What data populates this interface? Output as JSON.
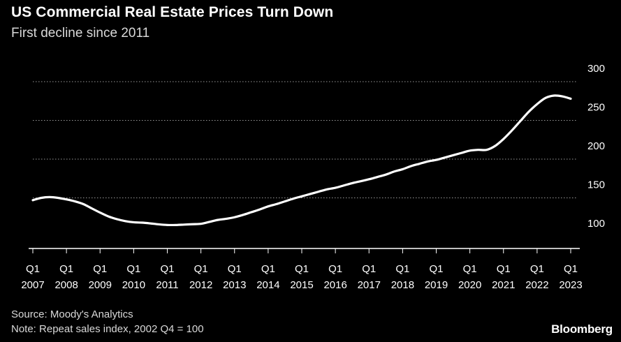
{
  "header": {
    "title": "US Commercial Real Estate Prices Turn Down",
    "subtitle": "First decline since 2011"
  },
  "footer": {
    "source": "Source: Moody's Analytics",
    "note": "Note: Repeat sales index, 2002 Q4 = 100",
    "brand": "Bloomberg"
  },
  "colors": {
    "background": "#000000",
    "line": "#ffffff",
    "grid": "#9a9a9a",
    "text": "#ffffff"
  },
  "chart_data": {
    "type": "line",
    "title": "US Commercial Real Estate Prices Turn Down",
    "subtitle": "First decline since 2011",
    "xlabel": "",
    "ylabel": "",
    "xlim": [
      2007.0,
      2023.25
    ],
    "ylim": [
      90,
      300
    ],
    "yticks": [
      100,
      150,
      200,
      250,
      300
    ],
    "xticks": [
      {
        "x": 2007,
        "q": "Q1",
        "year": "2007"
      },
      {
        "x": 2008,
        "q": "Q1",
        "year": "2008"
      },
      {
        "x": 2009,
        "q": "Q1",
        "year": "2009"
      },
      {
        "x": 2010,
        "q": "Q1",
        "year": "2010"
      },
      {
        "x": 2011,
        "q": "Q1",
        "year": "2011"
      },
      {
        "x": 2012,
        "q": "Q1",
        "year": "2012"
      },
      {
        "x": 2013,
        "q": "Q1",
        "year": "2013"
      },
      {
        "x": 2014,
        "q": "Q1",
        "year": "2014"
      },
      {
        "x": 2015,
        "q": "Q1",
        "year": "2015"
      },
      {
        "x": 2016,
        "q": "Q1",
        "year": "2016"
      },
      {
        "x": 2017,
        "q": "Q1",
        "year": "2017"
      },
      {
        "x": 2018,
        "q": "Q1",
        "year": "2018"
      },
      {
        "x": 2019,
        "q": "Q1",
        "year": "2019"
      },
      {
        "x": 2020,
        "q": "Q1",
        "year": "2020"
      },
      {
        "x": 2021,
        "q": "Q1",
        "year": "2021"
      },
      {
        "x": 2022,
        "q": "Q1",
        "year": "2022"
      },
      {
        "x": 2023,
        "q": "Q1",
        "year": "2023"
      }
    ],
    "grid": true,
    "axis_side": "right",
    "series": [
      {
        "name": "",
        "x": [
          2007.0,
          2007.25,
          2007.5,
          2007.75,
          2008.0,
          2008.25,
          2008.5,
          2008.75,
          2009.0,
          2009.25,
          2009.5,
          2009.75,
          2010.0,
          2010.25,
          2010.5,
          2010.75,
          2011.0,
          2011.25,
          2011.5,
          2011.75,
          2012.0,
          2012.25,
          2012.5,
          2012.75,
          2013.0,
          2013.25,
          2013.5,
          2013.75,
          2014.0,
          2014.25,
          2014.5,
          2014.75,
          2015.0,
          2015.25,
          2015.5,
          2015.75,
          2016.0,
          2016.25,
          2016.5,
          2016.75,
          2017.0,
          2017.25,
          2017.5,
          2017.75,
          2018.0,
          2018.25,
          2018.5,
          2018.75,
          2019.0,
          2019.25,
          2019.5,
          2019.75,
          2020.0,
          2020.25,
          2020.5,
          2020.75,
          2021.0,
          2021.25,
          2021.5,
          2021.75,
          2022.0,
          2022.25,
          2022.5,
          2022.75,
          2023.0
        ],
        "values": [
          147.0,
          150.0,
          151.0,
          150.0,
          148.0,
          145.5,
          142.0,
          136.5,
          131.0,
          126.0,
          122.5,
          120.0,
          118.5,
          118.0,
          117.0,
          115.8,
          115.0,
          115.0,
          115.5,
          116.0,
          116.5,
          119.0,
          121.5,
          123.0,
          125.0,
          128.0,
          131.5,
          135.0,
          139.0,
          142.0,
          145.5,
          149.0,
          152.0,
          155.0,
          158.0,
          161.0,
          163.0,
          166.0,
          169.0,
          171.5,
          174.0,
          177.0,
          180.0,
          184.0,
          187.0,
          191.0,
          194.0,
          197.0,
          199.0,
          202.0,
          205.0,
          208.0,
          211.0,
          212.0,
          212.0,
          217.0,
          226.0,
          237.0,
          249.0,
          261.0,
          271.0,
          279.0,
          282.0,
          281.0,
          278.0
        ]
      }
    ]
  }
}
